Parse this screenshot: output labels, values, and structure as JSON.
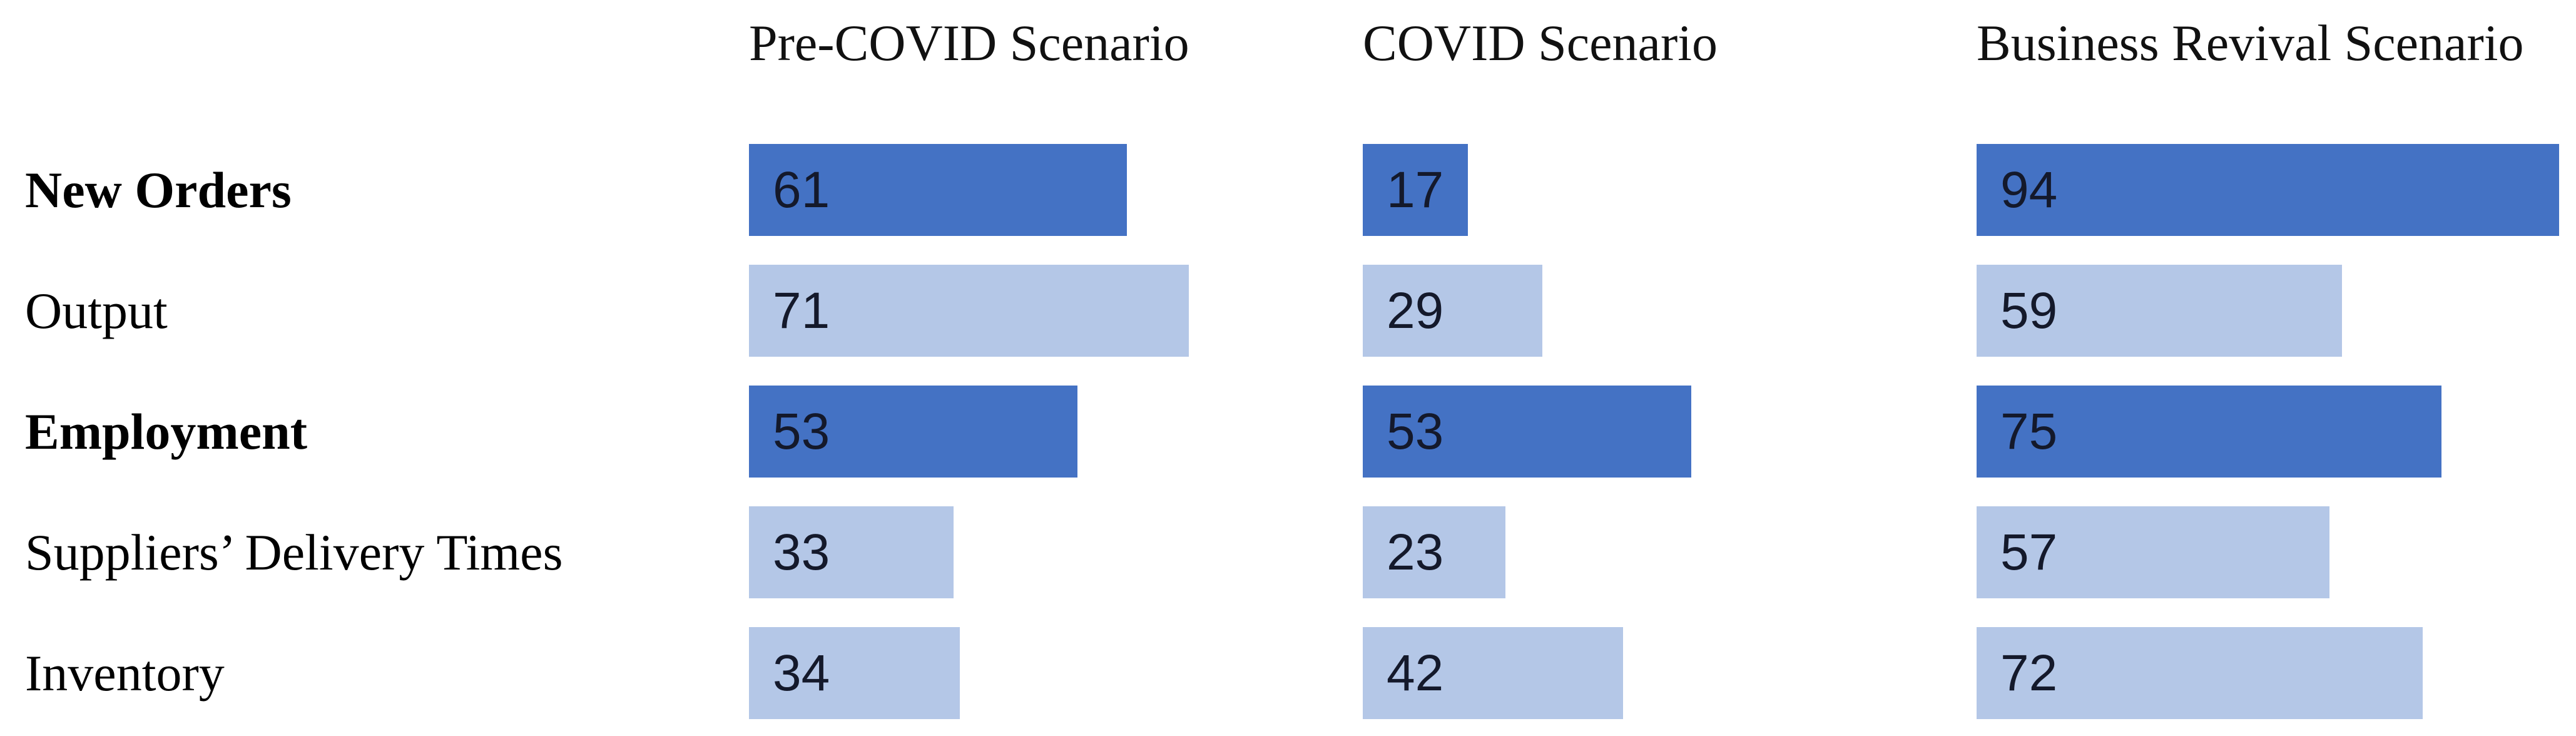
{
  "page": {
    "background": "#ffffff"
  },
  "chart": {
    "colors": {
      "dark_bar": "#4472C4",
      "light_bar": "#B4C7E7",
      "value_text": "#14192B",
      "header_text": "#111111",
      "label_text": "#000000"
    },
    "categories": [
      {
        "label": "New Orders",
        "bold": true,
        "tone": "dark"
      },
      {
        "label": "Output",
        "bold": false,
        "tone": "light"
      },
      {
        "label": "Employment",
        "bold": true,
        "tone": "dark"
      },
      {
        "label": "Suppliers’ Delivery Times",
        "bold": false,
        "tone": "light"
      },
      {
        "label": "Inventory",
        "bold": false,
        "tone": "light"
      }
    ],
    "columns": [
      {
        "header": "Pre-COVID Scenario",
        "values": [
          61,
          71,
          53,
          33,
          34
        ]
      },
      {
        "header": "COVID Scenario",
        "values": [
          17,
          29,
          53,
          23,
          42
        ]
      },
      {
        "header": "Business Revival Scenario",
        "values": [
          94,
          59,
          75,
          57,
          72
        ]
      }
    ]
  },
  "chart_data": {
    "type": "bar",
    "orientation": "horizontal",
    "title": "",
    "categories": [
      "New Orders",
      "Output",
      "Employment",
      "Suppliers’ Delivery Times",
      "Inventory"
    ],
    "series": [
      {
        "name": "Pre-COVID Scenario",
        "values": [
          61,
          71,
          53,
          33,
          34
        ]
      },
      {
        "name": "COVID Scenario",
        "values": [
          17,
          29,
          53,
          23,
          42
        ]
      },
      {
        "name": "Business Revival Scenario",
        "values": [
          94,
          59,
          75,
          57,
          72
        ]
      }
    ],
    "xlim": [
      0,
      100
    ],
    "grid": false,
    "legend": false,
    "data_labels": "inside-left",
    "bar_color_by_row": [
      "#4472C4",
      "#B4C7E7",
      "#4472C4",
      "#B4C7E7",
      "#B4C7E7"
    ],
    "layout": "three side-by-side panels, one per series; bold category labels correspond to dark bars"
  }
}
